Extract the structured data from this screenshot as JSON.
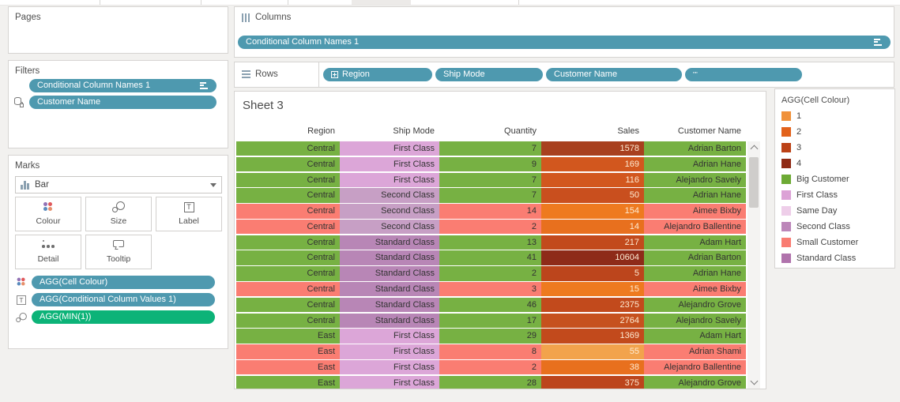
{
  "pages": {
    "label": "Pages"
  },
  "filters": {
    "label": "Filters",
    "pills": [
      {
        "label": "Conditional Column Names 1",
        "sorted": true
      },
      {
        "label": "Customer Name",
        "datasource_filter": true
      }
    ]
  },
  "marks": {
    "label": "Marks",
    "mark_type": "Bar",
    "buttons": [
      {
        "label": "Colour"
      },
      {
        "label": "Size"
      },
      {
        "label": "Label"
      },
      {
        "label": "Detail"
      },
      {
        "label": "Tooltip"
      }
    ],
    "pills": [
      {
        "label": "AGG(Cell Colour)",
        "icon": "colour-dots-icon",
        "color": "#4E99AF"
      },
      {
        "label": "AGG(Conditional Column Values 1)",
        "icon": "text-icon",
        "color": "#4E99AF"
      },
      {
        "label": "AGG(MIN(1))",
        "icon": "size-icon",
        "color": "#0CB378"
      }
    ]
  },
  "columns_shelf": {
    "label": "Columns",
    "pill": {
      "label": "Conditional Column Names 1",
      "sorted": true
    }
  },
  "rows_shelf": {
    "label": "Rows",
    "pills": [
      {
        "label": "Region",
        "expand": true
      },
      {
        "label": "Ship Mode"
      },
      {
        "label": "Customer Name"
      },
      {
        "label": "\"\""
      }
    ]
  },
  "sheet": {
    "title": "Sheet 3",
    "columns": [
      "Region",
      "Ship Mode",
      "Quantity",
      "Sales",
      "Customer Name"
    ],
    "rows": [
      {
        "region": "Central",
        "ship_mode": "First Class",
        "quantity": "7",
        "sales": "1578",
        "customer": "Adrian Barton",
        "customer_type": "big",
        "ship_class": "first",
        "sales_color": "#A8401E"
      },
      {
        "region": "Central",
        "ship_mode": "First Class",
        "quantity": "9",
        "sales": "169",
        "customer": "Adrian Hane",
        "customer_type": "big",
        "ship_class": "first",
        "sales_color": "#D2571E"
      },
      {
        "region": "Central",
        "ship_mode": "First Class",
        "quantity": "7",
        "sales": "116",
        "customer": "Alejandro Savely",
        "customer_type": "big",
        "ship_class": "first",
        "sales_color": "#D2571E"
      },
      {
        "region": "Central",
        "ship_mode": "Second Class",
        "quantity": "7",
        "sales": "50",
        "customer": "Adrian Hane",
        "customer_type": "big",
        "ship_class": "second",
        "sales_color": "#C94F1E"
      },
      {
        "region": "Central",
        "ship_mode": "Second Class",
        "quantity": "14",
        "sales": "154",
        "customer": "Aimee Bixby",
        "customer_type": "small",
        "ship_class": "second",
        "sales_color": "#EE7A1F"
      },
      {
        "region": "Central",
        "ship_mode": "Second Class",
        "quantity": "2",
        "sales": "14",
        "customer": "Alejandro Ballentine",
        "customer_type": "small",
        "ship_class": "second",
        "sales_color": "#E8701E"
      },
      {
        "region": "Central",
        "ship_mode": "Standard Class",
        "quantity": "13",
        "sales": "217",
        "customer": "Adam Hart",
        "customer_type": "big",
        "ship_class": "standard",
        "sales_color": "#C24A1C"
      },
      {
        "region": "Central",
        "ship_mode": "Standard Class",
        "quantity": "41",
        "sales": "10604",
        "customer": "Adrian Barton",
        "customer_type": "big",
        "ship_class": "standard",
        "sales_color": "#8E2B19"
      },
      {
        "region": "Central",
        "ship_mode": "Standard Class",
        "quantity": "2",
        "sales": "5",
        "customer": "Adrian Hane",
        "customer_type": "big",
        "ship_class": "standard",
        "sales_color": "#BC451C"
      },
      {
        "region": "Central",
        "ship_mode": "Standard Class",
        "quantity": "3",
        "sales": "15",
        "customer": "Aimee Bixby",
        "customer_type": "small",
        "ship_class": "standard",
        "sales_color": "#EE7A1F"
      },
      {
        "region": "Central",
        "ship_mode": "Standard Class",
        "quantity": "46",
        "sales": "2375",
        "customer": "Alejandro Grove",
        "customer_type": "big",
        "ship_class": "standard",
        "sales_color": "#C24A1C"
      },
      {
        "region": "Central",
        "ship_mode": "Standard Class",
        "quantity": "17",
        "sales": "2764",
        "customer": "Alejandro Savely",
        "customer_type": "big",
        "ship_class": "standard",
        "sales_color": "#C6511E"
      },
      {
        "region": "East",
        "ship_mode": "First Class",
        "quantity": "29",
        "sales": "1369",
        "customer": "Adam Hart",
        "customer_type": "big",
        "ship_class": "first",
        "sales_color": "#C24A1C"
      },
      {
        "region": "East",
        "ship_mode": "First Class",
        "quantity": "8",
        "sales": "55",
        "customer": "Adrian Shami",
        "customer_type": "small",
        "ship_class": "first",
        "sales_color": "#F2A34C"
      },
      {
        "region": "East",
        "ship_mode": "First Class",
        "quantity": "2",
        "sales": "38",
        "customer": "Alejandro Ballentine",
        "customer_type": "small",
        "ship_class": "first",
        "sales_color": "#E8701E"
      },
      {
        "region": "East",
        "ship_mode": "First Class",
        "quantity": "28",
        "sales": "375",
        "customer": "Alejandro Grove",
        "customer_type": "big",
        "ship_class": "first",
        "sales_color": "#BC451C"
      }
    ]
  },
  "legend": {
    "title": "AGG(Cell Colour)",
    "items": [
      {
        "label": "1",
        "color": "#F0913A"
      },
      {
        "label": "2",
        "color": "#E2621B"
      },
      {
        "label": "3",
        "color": "#BC4217"
      },
      {
        "label": "4",
        "color": "#8F2A15"
      },
      {
        "label": "Big Customer",
        "color": "#6DAA35"
      },
      {
        "label": "First Class",
        "color": "#DCA2D6"
      },
      {
        "label": "Same Day",
        "color": "#EECEE9"
      },
      {
        "label": "Second Class",
        "color": "#BC86B9"
      },
      {
        "label": "Small Customer",
        "color": "#F97C72"
      },
      {
        "label": "Standard Class",
        "color": "#B073AC"
      }
    ]
  },
  "colors": {
    "pill_teal": "#4E99AF",
    "pill_green": "#0CB378",
    "row_big": "#77B143",
    "row_small": "#FA7D72",
    "ship_first": "#DCA6D8",
    "ship_second": "#C79FC5",
    "ship_standard": "#B886B6",
    "sales_text": "#FDEBD3",
    "cell_text": "#333333"
  }
}
